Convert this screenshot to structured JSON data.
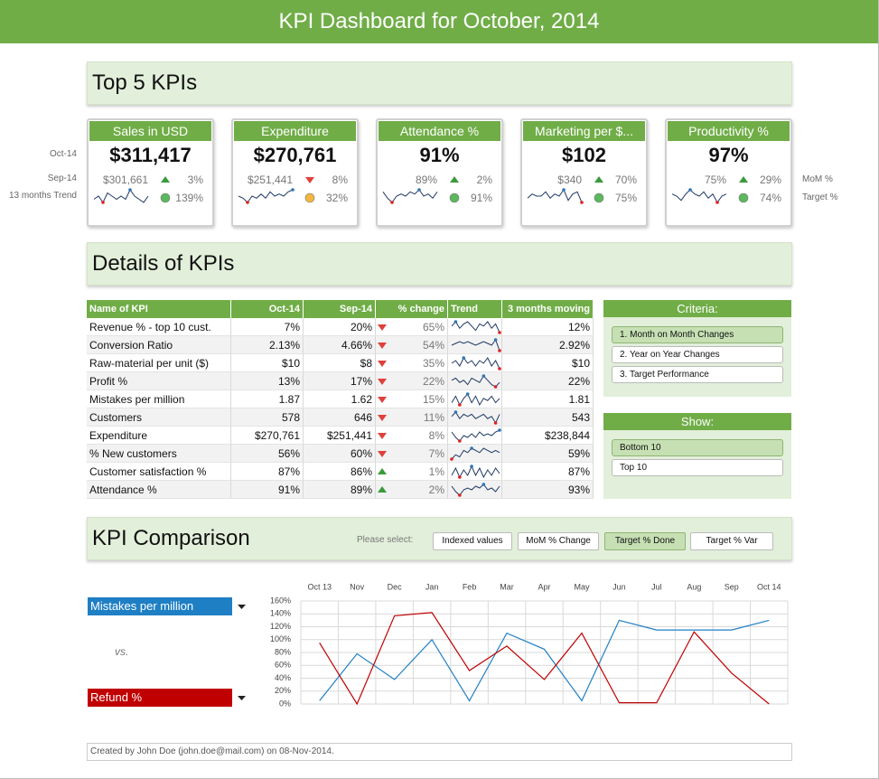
{
  "header": {
    "title": "KPI Dashboard for October, 2014"
  },
  "top5": {
    "title": "Top 5 KPIs",
    "row_labels": [
      "Oct-14",
      "Sep-14",
      "13 months Trend"
    ],
    "side_labels": [
      "MoM %",
      "Target %"
    ],
    "cards": [
      {
        "name": "Sales in USD",
        "current": "$311,417",
        "previous": "$301,661",
        "mom": "3%",
        "dir": "up",
        "target": "139%",
        "status_color": "#5cb85c",
        "trend": [
          4,
          5,
          3,
          6,
          5,
          4,
          5,
          4,
          7,
          5,
          4,
          3,
          5
        ]
      },
      {
        "name": "Expenditure",
        "current": "$270,761",
        "previous": "$251,441",
        "mom": "8%",
        "dir": "down",
        "target": "32%",
        "status_color": "#f4b63f",
        "trend": [
          4,
          3,
          1,
          4,
          3,
          5,
          3,
          6,
          4,
          5,
          4,
          6,
          7
        ]
      },
      {
        "name": "Attendance %",
        "current": "91%",
        "previous": "89%",
        "mom": "2%",
        "dir": "up",
        "target": "91%",
        "status_color": "#5cb85c",
        "trend": [
          6,
          3,
          1,
          4,
          5,
          4,
          6,
          5,
          7,
          4,
          5,
          3,
          6
        ]
      },
      {
        "name": "Marketing per $...",
        "current": "$102",
        "previous": "$340",
        "mom": "70%",
        "dir": "up",
        "target": "75%",
        "status_color": "#5cb85c",
        "trend": [
          4,
          6,
          5,
          5,
          7,
          4,
          6,
          5,
          8,
          3,
          6,
          7,
          2
        ]
      },
      {
        "name": "Productivity %",
        "current": "97%",
        "previous": "75%",
        "mom": "29%",
        "dir": "up",
        "target": "74%",
        "status_color": "#5cb85c",
        "trend": [
          6,
          5,
          3,
          6,
          8,
          6,
          5,
          7,
          4,
          6,
          2,
          5,
          6
        ]
      }
    ]
  },
  "details": {
    "title": "Details of KPIs",
    "columns": [
      "Name of KPI",
      "Oct-14",
      "Sep-14",
      "% change",
      "Trend",
      "3 months moving"
    ],
    "rows": [
      {
        "name": "Revenue % - top 10 cust.",
        "oct": "7%",
        "sep": "20%",
        "dir": "down",
        "change": "65%",
        "moving": "12%",
        "trend": [
          5,
          7,
          4,
          6,
          7,
          5,
          3,
          6,
          5,
          7,
          4,
          6,
          2
        ]
      },
      {
        "name": "Conversion Ratio",
        "oct": "2.13%",
        "sep": "4.66%",
        "dir": "down",
        "change": "54%",
        "moving": "2.92%",
        "trend": [
          4,
          5,
          6,
          5,
          6,
          5,
          4,
          5,
          6,
          5,
          4,
          7,
          1
        ]
      },
      {
        "name": "Raw-material per unit ($)",
        "oct": "$10",
        "sep": "$8",
        "dir": "down",
        "change": "35%",
        "moving": "$10",
        "trend": [
          5,
          6,
          4,
          7,
          5,
          6,
          4,
          6,
          5,
          7,
          4,
          6,
          3
        ]
      },
      {
        "name": "Profit %",
        "oct": "13%",
        "sep": "17%",
        "dir": "down",
        "change": "22%",
        "moving": "22%",
        "trend": [
          6,
          7,
          5,
          6,
          4,
          7,
          6,
          5,
          8,
          6,
          4,
          3,
          5
        ]
      },
      {
        "name": "Mistakes per million",
        "oct": "1.87",
        "sep": "1.62",
        "dir": "down",
        "change": "15%",
        "moving": "1.81",
        "trend": [
          3,
          6,
          2,
          5,
          7,
          3,
          6,
          2,
          5,
          4,
          6,
          3,
          5
        ]
      },
      {
        "name": "Customers",
        "oct": "578",
        "sep": "646",
        "dir": "down",
        "change": "11%",
        "moving": "543",
        "trend": [
          5,
          7,
          4,
          6,
          5,
          6,
          4,
          5,
          6,
          4,
          5,
          2,
          6
        ]
      },
      {
        "name": "Expenditure",
        "oct": "$270,761",
        "sep": "$251,441",
        "dir": "down",
        "change": "8%",
        "moving": "$238,844",
        "trend": [
          6,
          3,
          1,
          4,
          3,
          5,
          3,
          6,
          4,
          5,
          4,
          6,
          7
        ]
      },
      {
        "name": "% New customers",
        "oct": "56%",
        "sep": "60%",
        "dir": "down",
        "change": "7%",
        "moving": "59%",
        "trend": [
          2,
          4,
          3,
          6,
          5,
          7,
          6,
          5,
          7,
          6,
          5,
          6,
          5
        ]
      },
      {
        "name": "Customer satisfaction %",
        "oct": "87%",
        "sep": "86%",
        "dir": "up",
        "change": "1%",
        "moving": "87%",
        "trend": [
          3,
          7,
          2,
          6,
          3,
          8,
          3,
          7,
          2,
          6,
          3,
          7,
          4
        ]
      },
      {
        "name": "Attendance %",
        "oct": "91%",
        "sep": "89%",
        "dir": "up",
        "change": "2%",
        "moving": "93%",
        "trend": [
          6,
          3,
          1,
          4,
          5,
          4,
          6,
          5,
          7,
          4,
          5,
          3,
          6
        ]
      }
    ]
  },
  "criteria": {
    "title": "Criteria:",
    "options": [
      "1. Month on Month Changes",
      "2. Year on Year Changes",
      "3. Target Performance"
    ],
    "selected": 0
  },
  "show": {
    "title": "Show:",
    "options": [
      "Bottom 10",
      "Top 10"
    ],
    "selected": 0
  },
  "comparison": {
    "title": "KPI Comparison",
    "prompt": "Please select:",
    "buttons": [
      "Indexed values",
      "MoM % Change",
      "Target % Done",
      "Target % Var"
    ],
    "selected": 2,
    "vs": "vs.",
    "chart": {
      "type": "line",
      "categories": [
        "Oct 13",
        "Nov",
        "Dec",
        "Jan",
        "Feb",
        "Mar",
        "Apr",
        "May",
        "Jun",
        "Jul",
        "Aug",
        "Sep",
        "Oct 14"
      ],
      "ylim": [
        0,
        160
      ],
      "yticks": [
        {
          "value": 0,
          "label": "0%"
        },
        {
          "value": 20,
          "label": "20%"
        },
        {
          "value": 40,
          "label": "40%"
        },
        {
          "value": 60,
          "label": "60%"
        },
        {
          "value": 80,
          "label": "80%"
        },
        {
          "value": 100,
          "label": "100%"
        },
        {
          "value": 120,
          "label": "120%"
        },
        {
          "value": 140,
          "label": "140%"
        },
        {
          "value": 160,
          "label": "160%"
        }
      ],
      "grid": true,
      "series": [
        {
          "name": "Mistakes per million",
          "color": "#1f7fc4",
          "values": [
            5,
            78,
            38,
            100,
            5,
            110,
            85,
            5,
            130,
            115,
            115,
            115,
            130
          ]
        },
        {
          "name": "Refund %",
          "color": "#c00000",
          "values": [
            95,
            0,
            137,
            142,
            52,
            90,
            38,
            110,
            2,
            2,
            112,
            48,
            0
          ]
        }
      ]
    }
  },
  "footer": {
    "text": "Created by John Doe (john.doe@mail.com) on 08-Nov-2014."
  }
}
